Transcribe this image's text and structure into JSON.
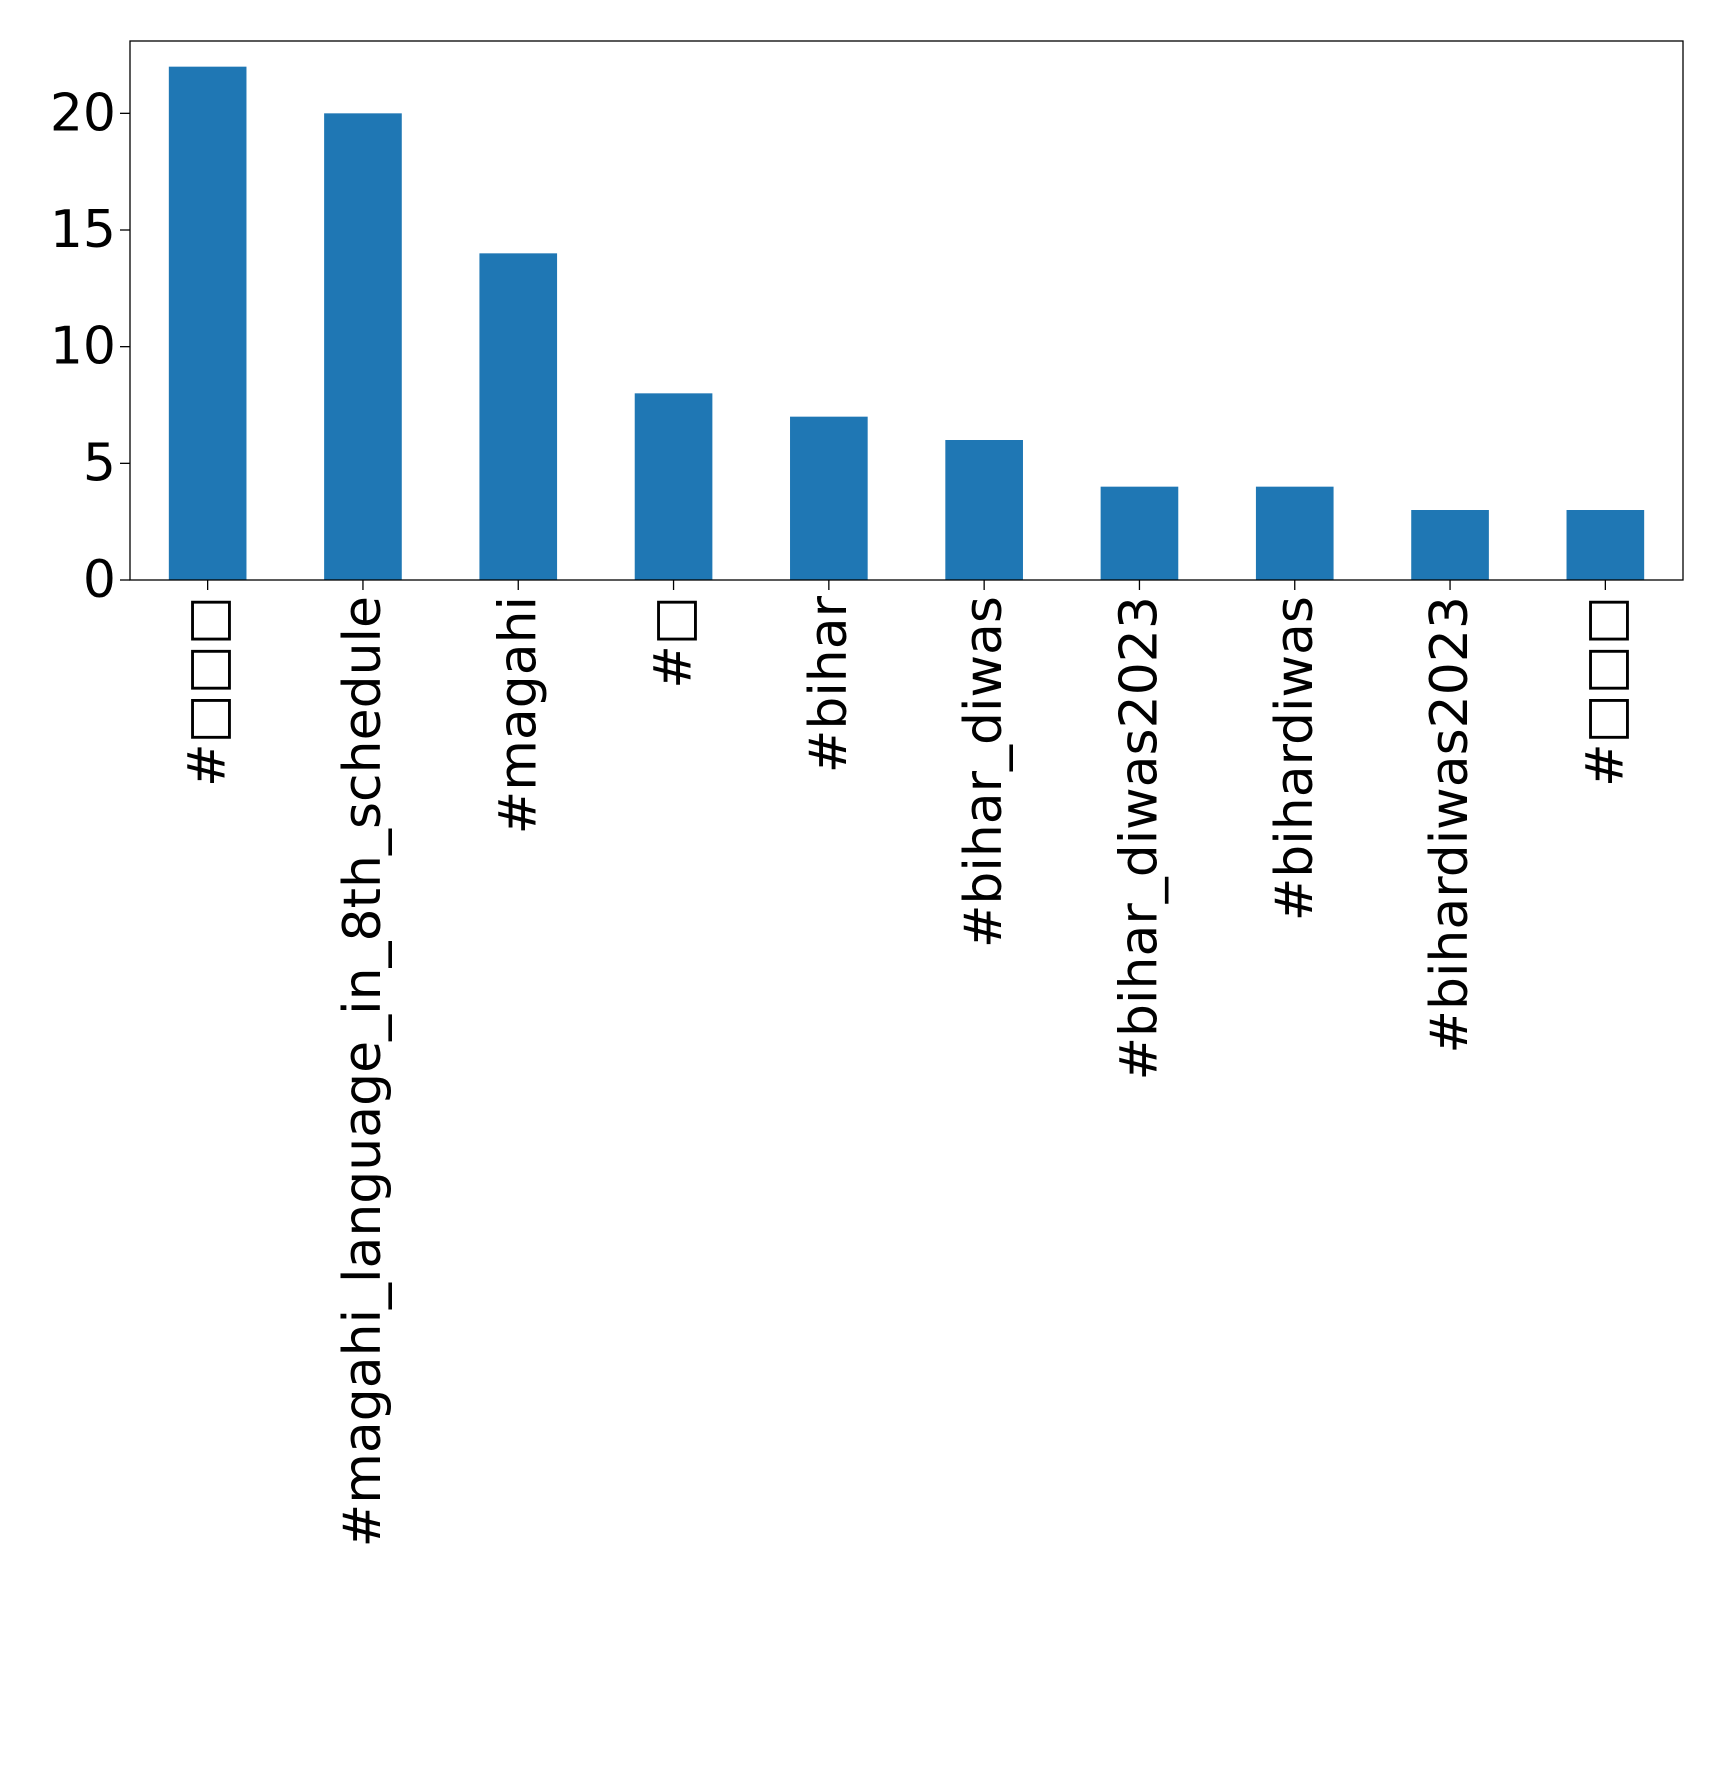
{
  "chart_data": {
    "type": "bar",
    "categories": [
      "#□□□",
      "#magahi_language_in_8th_schedule",
      "#magahi",
      "#□",
      "#bihar",
      "#bihar_diwas",
      "#bihar_diwas2023",
      "#bihardiwas",
      "#bihardiwas2023",
      "#□□□"
    ],
    "values": [
      22,
      20,
      14,
      8,
      7,
      6,
      4,
      4,
      3,
      3
    ],
    "yticks": [
      0,
      5,
      10,
      15,
      20
    ],
    "ylim": [
      0,
      23.1
    ],
    "title": "",
    "xlabel": "",
    "ylabel": "",
    "bar_color": "#1f77b4",
    "grid": false,
    "legend": false
  }
}
